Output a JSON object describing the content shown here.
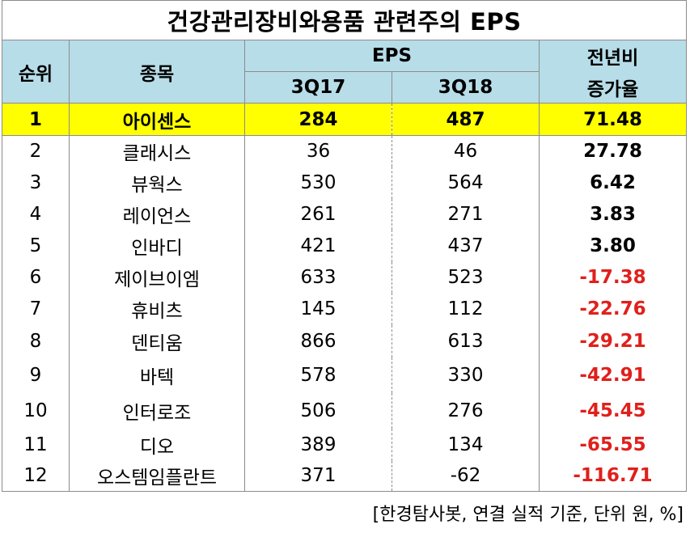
{
  "title": "건강관리장비와용품 관련주의 EPS",
  "headers": {
    "rank": "순위",
    "name": "종목",
    "eps": "EPS",
    "q1": "3Q17",
    "q2": "3Q18",
    "growth_line1": "전년비",
    "growth_line2": "증가율"
  },
  "rows": [
    {
      "rank": "1",
      "name": "아이센스",
      "q1": "284",
      "q2": "487",
      "growth": "71.48"
    },
    {
      "rank": "2",
      "name": "클래시스",
      "q1": "36",
      "q2": "46",
      "growth": "27.78"
    },
    {
      "rank": "3",
      "name": "뷰웍스",
      "q1": "530",
      "q2": "564",
      "growth": "6.42"
    },
    {
      "rank": "4",
      "name": "레이언스",
      "q1": "261",
      "q2": "271",
      "growth": "3.83"
    },
    {
      "rank": "5",
      "name": "인바디",
      "q1": "421",
      "q2": "437",
      "growth": "3.80"
    },
    {
      "rank": "6",
      "name": "제이브이엠",
      "q1": "633",
      "q2": "523",
      "growth": "-17.38"
    },
    {
      "rank": "7",
      "name": "휴비츠",
      "q1": "145",
      "q2": "112",
      "growth": "-22.76"
    },
    {
      "rank": "8",
      "name": "덴티움",
      "q1": "866",
      "q2": "613",
      "growth": "-29.21"
    },
    {
      "rank": "9",
      "name": "바텍",
      "q1": "578",
      "q2": "330",
      "growth": "-42.91"
    },
    {
      "rank": "10",
      "name": "인터로조",
      "q1": "506",
      "q2": "276",
      "growth": "-45.45"
    },
    {
      "rank": "11",
      "name": "디오",
      "q1": "389",
      "q2": "134",
      "growth": "-65.55"
    },
    {
      "rank": "12",
      "name": "오스템임플란트",
      "q1": "371",
      "q2": "-62",
      "growth": "-116.71"
    }
  ],
  "source": "[한경탐사봇, 연결 실적 기준, 단위 원, %]",
  "colors": {
    "header_bg": "#b7dde8",
    "highlight_bg": "#ffff00",
    "negative_text": "#e0201b"
  }
}
